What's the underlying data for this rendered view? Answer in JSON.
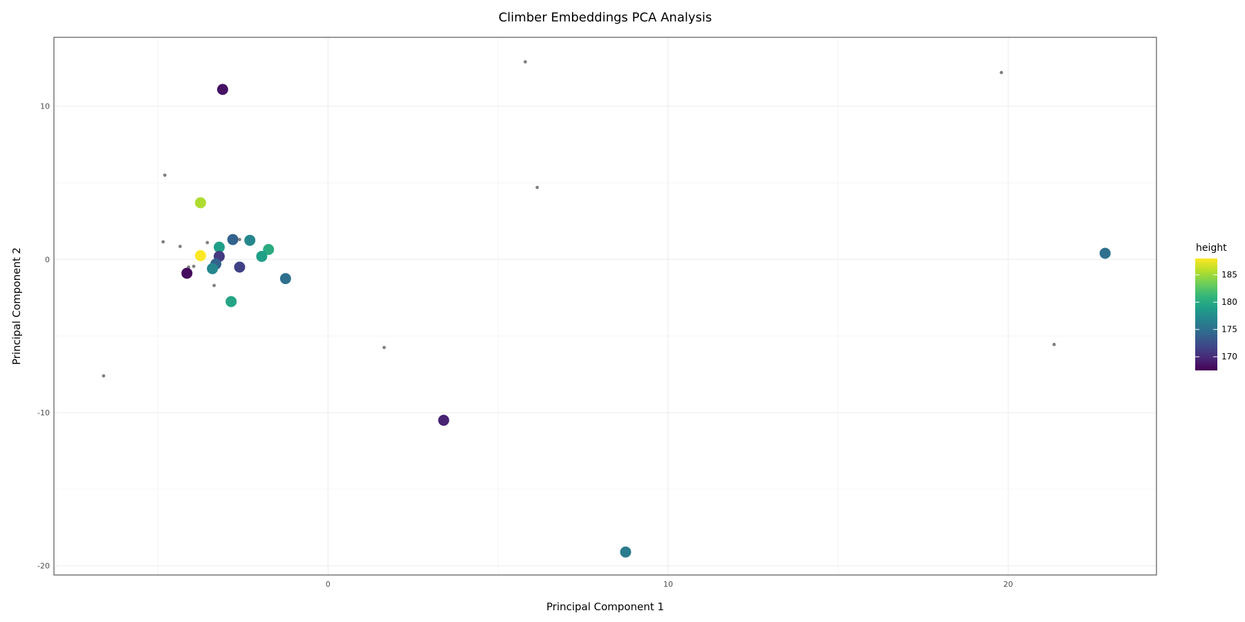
{
  "chart_data": {
    "type": "scatter",
    "title": "Climber Embeddings PCA Analysis",
    "xlabel": "Principal Component 1",
    "ylabel": "Principal Component 2",
    "xlim": [
      -8.06,
      24.36
    ],
    "ylim": [
      -20.6,
      14.5
    ],
    "xticks": [
      0,
      10,
      20
    ],
    "yticks": [
      -20,
      -10,
      0,
      10
    ],
    "grid": true,
    "legend": {
      "title": "height",
      "position": "right",
      "range": [
        167.5,
        188.0
      ],
      "ticks": [
        185,
        180,
        175,
        170
      ]
    },
    "colorscale": "viridis",
    "small_point_color": "#7f7f7f",
    "series": [
      {
        "points": [
          {
            "x": -3.1,
            "y": 11.1,
            "height": 168.5
          },
          {
            "x": -3.75,
            "y": 3.7,
            "height": 185.5
          },
          {
            "x": -3.2,
            "y": 0.8,
            "height": 179.0
          },
          {
            "x": -2.8,
            "y": 1.3,
            "height": 174.0
          },
          {
            "x": -2.3,
            "y": 1.25,
            "height": 177.0
          },
          {
            "x": -1.75,
            "y": 0.65,
            "height": 180.0
          },
          {
            "x": -1.95,
            "y": 0.2,
            "height": 179.0
          },
          {
            "x": -3.75,
            "y": 0.25,
            "height": 188.0
          },
          {
            "x": -3.2,
            "y": 0.2,
            "height": 171.0
          },
          {
            "x": -3.3,
            "y": -0.3,
            "height": 174.0
          },
          {
            "x": -3.4,
            "y": -0.6,
            "height": 177.0
          },
          {
            "x": -2.6,
            "y": -0.5,
            "height": 171.5
          },
          {
            "x": -4.15,
            "y": -0.9,
            "height": 168.0
          },
          {
            "x": -1.25,
            "y": -1.25,
            "height": 175.0
          },
          {
            "x": -2.85,
            "y": -2.75,
            "height": 179.5
          },
          {
            "x": 3.4,
            "y": -10.5,
            "height": 169.5
          },
          {
            "x": 8.75,
            "y": -19.1,
            "height": 176.0
          },
          {
            "x": 22.85,
            "y": 0.4,
            "height": 175.0
          }
        ]
      },
      {
        "points": [
          {
            "x": -4.8,
            "y": 5.5
          },
          {
            "x": -4.85,
            "y": 1.15
          },
          {
            "x": -4.35,
            "y": 0.85
          },
          {
            "x": -3.55,
            "y": 1.1
          },
          {
            "x": -2.6,
            "y": 1.3
          },
          {
            "x": -4.1,
            "y": -0.5
          },
          {
            "x": -3.95,
            "y": -0.45
          },
          {
            "x": -3.35,
            "y": -1.7
          },
          {
            "x": -6.6,
            "y": -7.6
          },
          {
            "x": 1.65,
            "y": -5.75
          },
          {
            "x": 5.8,
            "y": 12.9
          },
          {
            "x": 6.15,
            "y": 4.7
          },
          {
            "x": 19.8,
            "y": 12.2
          },
          {
            "x": 21.35,
            "y": -5.55
          }
        ]
      }
    ]
  }
}
